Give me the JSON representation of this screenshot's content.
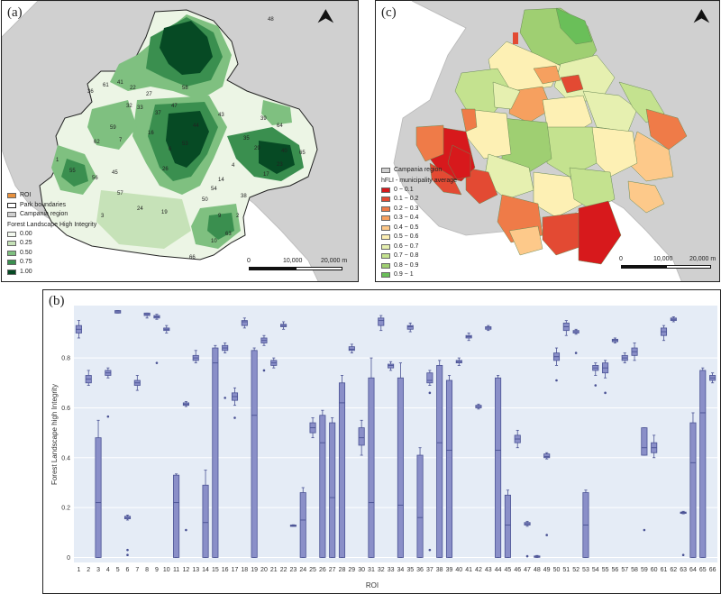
{
  "panel_a": {
    "label": "(a)",
    "legend": {
      "items": [
        {
          "label": "ROI",
          "color": "#e8913e"
        },
        {
          "label": "Park boundaries",
          "color": "#ffffff",
          "outline": "#222222"
        },
        {
          "label": "Campania region",
          "color": "#d0d0d0"
        }
      ],
      "title": "Forest Landscape High Integrity",
      "stops": [
        {
          "label": "0.00",
          "color": "#f2f8ee"
        },
        {
          "label": "0.25",
          "color": "#c6e2b8"
        },
        {
          "label": "0.50",
          "color": "#7fc080"
        },
        {
          "label": "0.75",
          "color": "#3a8f4f"
        },
        {
          "label": "1.00",
          "color": "#064a24"
        }
      ]
    },
    "scalebar": {
      "start": "0",
      "mid": "10,000",
      "end": "20,000 m"
    },
    "roi_numbers": [
      "48",
      "41",
      "36",
      "61",
      "22",
      "27",
      "32",
      "58",
      "33",
      "37",
      "47",
      "43",
      "59",
      "16",
      "7",
      "64",
      "39",
      "44",
      "62",
      "40",
      "6",
      "53",
      "35",
      "29",
      "1",
      "23",
      "65",
      "55",
      "56",
      "45",
      "26",
      "4",
      "14",
      "54",
      "57",
      "17",
      "50",
      "24",
      "38",
      "19",
      "3",
      "9",
      "2",
      "63",
      "10",
      "66"
    ]
  },
  "panel_c": {
    "label": "(c)",
    "legend": {
      "region": {
        "label": "Campania region",
        "color": "#d0d0d0"
      },
      "title": "hFLI - municipality average",
      "stops": [
        {
          "label": "0 − 0.1",
          "color": "#d7191c"
        },
        {
          "label": "0.1 − 0.2",
          "color": "#e34a33"
        },
        {
          "label": "0.2 − 0.3",
          "color": "#ef7b48"
        },
        {
          "label": "0.3 − 0.4",
          "color": "#f6a05f"
        },
        {
          "label": "0.4 − 0.5",
          "color": "#fdc98a"
        },
        {
          "label": "0.5 − 0.6",
          "color": "#fdf0b4"
        },
        {
          "label": "0.6 − 0.7",
          "color": "#e6f0b0"
        },
        {
          "label": "0.7 − 0.8",
          "color": "#c4e28f"
        },
        {
          "label": "0.8 − 0.9",
          "color": "#9fcf72"
        },
        {
          "label": "0.9 − 1",
          "color": "#6abf59"
        }
      ]
    },
    "scalebar": {
      "start": "0",
      "mid": "10,000",
      "end": "20,000 m"
    }
  },
  "chart_data": {
    "type": "box",
    "panel_label": "(b)",
    "xlabel": "ROI",
    "ylabel": "Forest Landscape high Integrity",
    "ylim": [
      -0.02,
      1.01
    ],
    "yticks": [
      0,
      0.2,
      0.4,
      0.6,
      0.8
    ],
    "ytick_labels": [
      "0",
      "0.2",
      "0.4",
      "0.6",
      "0.8"
    ],
    "categories": [
      "1",
      "2",
      "3",
      "4",
      "5",
      "6",
      "7",
      "8",
      "9",
      "10",
      "11",
      "12",
      "13",
      "14",
      "15",
      "16",
      "17",
      "18",
      "19",
      "20",
      "21",
      "22",
      "23",
      "24",
      "25",
      "26",
      "27",
      "28",
      "29",
      "30",
      "31",
      "32",
      "33",
      "34",
      "35",
      "36",
      "37",
      "38",
      "39",
      "40",
      "41",
      "42",
      "43",
      "44",
      "45",
      "46",
      "47",
      "48",
      "49",
      "50",
      "51",
      "52",
      "53",
      "54",
      "55",
      "56",
      "57",
      "58",
      "59",
      "60",
      "61",
      "62",
      "63",
      "64",
      "65",
      "66"
    ],
    "colors": {
      "box": "#8a8fc8",
      "edge": "#4a5294",
      "background": "#e5ecf6",
      "grid": "#ffffff"
    },
    "boxes": [
      {
        "q1": 0.9,
        "median": 0.915,
        "q3": 0.93,
        "low": 0.88,
        "high": 0.95,
        "out": []
      },
      {
        "q1": 0.7,
        "median": 0.715,
        "q3": 0.73,
        "low": 0.69,
        "high": 0.75,
        "out": []
      },
      {
        "q1": 0,
        "median": 0.22,
        "q3": 0.48,
        "low": 0,
        "high": 0.55,
        "out": []
      },
      {
        "q1": 0.73,
        "median": 0.74,
        "q3": 0.75,
        "low": 0.72,
        "high": 0.76,
        "out": [
          0.565
        ]
      },
      {
        "q1": 0.98,
        "median": 0.985,
        "q3": 0.99,
        "low": 0.98,
        "high": 0.99,
        "out": []
      },
      {
        "q1": 0.155,
        "median": 0.16,
        "q3": 0.165,
        "low": 0.15,
        "high": 0.17,
        "out": [
          0.03,
          0.01
        ]
      },
      {
        "q1": 0.69,
        "median": 0.7,
        "q3": 0.71,
        "low": 0.67,
        "high": 0.73,
        "out": []
      },
      {
        "q1": 0.97,
        "median": 0.975,
        "q3": 0.98,
        "low": 0.96,
        "high": 0.98,
        "out": []
      },
      {
        "q1": 0.96,
        "median": 0.965,
        "q3": 0.97,
        "low": 0.955,
        "high": 0.975,
        "out": [
          0.78
        ]
      },
      {
        "q1": 0.91,
        "median": 0.915,
        "q3": 0.92,
        "low": 0.9,
        "high": 0.93,
        "out": []
      },
      {
        "q1": 0,
        "median": 0.22,
        "q3": 0.33,
        "low": 0,
        "high": 0.335,
        "out": []
      },
      {
        "q1": 0.61,
        "median": 0.615,
        "q3": 0.62,
        "low": 0.605,
        "high": 0.625,
        "out": [
          0.11
        ]
      },
      {
        "q1": 0.79,
        "median": 0.8,
        "q3": 0.81,
        "low": 0.78,
        "high": 0.83,
        "out": []
      },
      {
        "q1": 0,
        "median": 0.14,
        "q3": 0.29,
        "low": 0,
        "high": 0.35,
        "out": []
      },
      {
        "q1": 0,
        "median": 0.78,
        "q3": 0.84,
        "low": 0,
        "high": 0.85,
        "out": []
      },
      {
        "q1": 0.83,
        "median": 0.84,
        "q3": 0.85,
        "low": 0.82,
        "high": 0.86,
        "out": [
          0.64
        ]
      },
      {
        "q1": 0.63,
        "median": 0.645,
        "q3": 0.66,
        "low": 0.61,
        "high": 0.68,
        "out": [
          0.56
        ]
      },
      {
        "q1": 0.93,
        "median": 0.945,
        "q3": 0.95,
        "low": 0.92,
        "high": 0.96,
        "out": []
      },
      {
        "q1": 0,
        "median": 0.57,
        "q3": 0.83,
        "low": 0,
        "high": 0.84,
        "out": []
      },
      {
        "q1": 0.86,
        "median": 0.87,
        "q3": 0.88,
        "low": 0.85,
        "high": 0.89,
        "out": [
          0.75
        ]
      },
      {
        "q1": 0.77,
        "median": 0.78,
        "q3": 0.79,
        "low": 0.76,
        "high": 0.8,
        "out": []
      },
      {
        "q1": 0.925,
        "median": 0.93,
        "q3": 0.935,
        "low": 0.915,
        "high": 0.945,
        "out": []
      },
      {
        "q1": 0.126,
        "median": 0.128,
        "q3": 0.13,
        "low": 0.125,
        "high": 0.131,
        "out": []
      },
      {
        "q1": 0,
        "median": 0.15,
        "q3": 0.26,
        "low": 0,
        "high": 0.28,
        "out": []
      },
      {
        "q1": 0.5,
        "median": 0.52,
        "q3": 0.54,
        "low": 0.48,
        "high": 0.56,
        "out": []
      },
      {
        "q1": 0,
        "median": 0.46,
        "q3": 0.57,
        "low": 0,
        "high": 0.59,
        "out": []
      },
      {
        "q1": 0,
        "median": 0.24,
        "q3": 0.54,
        "low": 0,
        "high": 0.56,
        "out": []
      },
      {
        "q1": 0,
        "median": 0.62,
        "q3": 0.7,
        "low": 0,
        "high": 0.73,
        "out": []
      },
      {
        "q1": 0.83,
        "median": 0.835,
        "q3": 0.845,
        "low": 0.82,
        "high": 0.855,
        "out": []
      },
      {
        "q1": 0.45,
        "median": 0.48,
        "q3": 0.52,
        "low": 0.41,
        "high": 0.55,
        "out": []
      },
      {
        "q1": 0,
        "median": 0.22,
        "q3": 0.72,
        "low": 0,
        "high": 0.8,
        "out": []
      },
      {
        "q1": 0.93,
        "median": 0.95,
        "q3": 0.96,
        "low": 0.91,
        "high": 0.97,
        "out": []
      },
      {
        "q1": 0.76,
        "median": 0.77,
        "q3": 0.775,
        "low": 0.75,
        "high": 0.785,
        "out": []
      },
      {
        "q1": 0,
        "median": 0.21,
        "q3": 0.72,
        "low": 0,
        "high": 0.78,
        "out": []
      },
      {
        "q1": 0.915,
        "median": 0.925,
        "q3": 0.93,
        "low": 0.905,
        "high": 0.94,
        "out": []
      },
      {
        "q1": 0,
        "median": 0.16,
        "q3": 0.41,
        "low": 0,
        "high": 0.44,
        "out": []
      },
      {
        "q1": 0.7,
        "median": 0.71,
        "q3": 0.74,
        "low": 0.69,
        "high": 0.75,
        "out": [
          0.66,
          0.03
        ]
      },
      {
        "q1": 0,
        "median": 0.46,
        "q3": 0.77,
        "low": 0,
        "high": 0.79,
        "out": []
      },
      {
        "q1": 0,
        "median": 0.43,
        "q3": 0.71,
        "low": 0,
        "high": 0.73,
        "out": []
      },
      {
        "q1": 0.78,
        "median": 0.785,
        "q3": 0.79,
        "low": 0.77,
        "high": 0.8,
        "out": []
      },
      {
        "q1": 0.88,
        "median": 0.885,
        "q3": 0.89,
        "low": 0.87,
        "high": 0.9,
        "out": []
      },
      {
        "q1": 0.6,
        "median": 0.605,
        "q3": 0.61,
        "low": 0.595,
        "high": 0.615,
        "out": []
      },
      {
        "q1": 0.915,
        "median": 0.92,
        "q3": 0.925,
        "low": 0.91,
        "high": 0.93,
        "out": []
      },
      {
        "q1": 0,
        "median": 0.43,
        "q3": 0.72,
        "low": 0,
        "high": 0.73,
        "out": []
      },
      {
        "q1": 0,
        "median": 0.13,
        "q3": 0.25,
        "low": 0,
        "high": 0.27,
        "out": []
      },
      {
        "q1": 0.46,
        "median": 0.475,
        "q3": 0.49,
        "low": 0.44,
        "high": 0.51,
        "out": []
      },
      {
        "q1": 0.13,
        "median": 0.135,
        "q3": 0.14,
        "low": 0.125,
        "high": 0.145,
        "out": [
          0.005
        ]
      },
      {
        "q1": 0.002,
        "median": 0.004,
        "q3": 0.006,
        "low": 0,
        "high": 0.008,
        "out": []
      },
      {
        "q1": 0.4,
        "median": 0.405,
        "q3": 0.415,
        "low": 0.395,
        "high": 0.42,
        "out": [
          0.09
        ]
      },
      {
        "q1": 0.79,
        "median": 0.805,
        "q3": 0.82,
        "low": 0.77,
        "high": 0.84,
        "out": [
          0.71
        ]
      },
      {
        "q1": 0.91,
        "median": 0.925,
        "q3": 0.94,
        "low": 0.89,
        "high": 0.95,
        "out": []
      },
      {
        "q1": 0.9,
        "median": 0.905,
        "q3": 0.91,
        "low": 0.895,
        "high": 0.915,
        "out": [
          0.82
        ]
      },
      {
        "q1": 0,
        "median": 0.13,
        "q3": 0.26,
        "low": 0,
        "high": 0.27,
        "out": []
      },
      {
        "q1": 0.75,
        "median": 0.76,
        "q3": 0.77,
        "low": 0.73,
        "high": 0.78,
        "out": [
          0.69
        ]
      },
      {
        "q1": 0.74,
        "median": 0.76,
        "q3": 0.78,
        "low": 0.72,
        "high": 0.79,
        "out": [
          0.66
        ]
      },
      {
        "q1": 0.865,
        "median": 0.87,
        "q3": 0.875,
        "low": 0.86,
        "high": 0.88,
        "out": []
      },
      {
        "q1": 0.79,
        "median": 0.8,
        "q3": 0.81,
        "low": 0.78,
        "high": 0.82,
        "out": []
      },
      {
        "q1": 0.81,
        "median": 0.825,
        "q3": 0.84,
        "low": 0.79,
        "high": 0.86,
        "out": []
      },
      {
        "q1": 0.41,
        "median": 0.44,
        "q3": 0.52,
        "low": 0.41,
        "high": 0.52,
        "out": [
          0.11
        ]
      },
      {
        "q1": 0.42,
        "median": 0.44,
        "q3": 0.46,
        "low": 0.4,
        "high": 0.49,
        "out": []
      },
      {
        "q1": 0.89,
        "median": 0.905,
        "q3": 0.92,
        "low": 0.87,
        "high": 0.93,
        "out": []
      },
      {
        "q1": 0.95,
        "median": 0.955,
        "q3": 0.96,
        "low": 0.945,
        "high": 0.965,
        "out": []
      },
      {
        "q1": 0.178,
        "median": 0.18,
        "q3": 0.182,
        "low": 0.175,
        "high": 0.185,
        "out": [
          0.01
        ]
      },
      {
        "q1": 0,
        "median": 0.38,
        "q3": 0.54,
        "low": 0,
        "high": 0.58,
        "out": []
      },
      {
        "q1": 0,
        "median": 0.58,
        "q3": 0.75,
        "low": 0,
        "high": 0.76,
        "out": []
      },
      {
        "q1": 0.71,
        "median": 0.72,
        "q3": 0.73,
        "low": 0.7,
        "high": 0.74,
        "out": []
      }
    ]
  }
}
